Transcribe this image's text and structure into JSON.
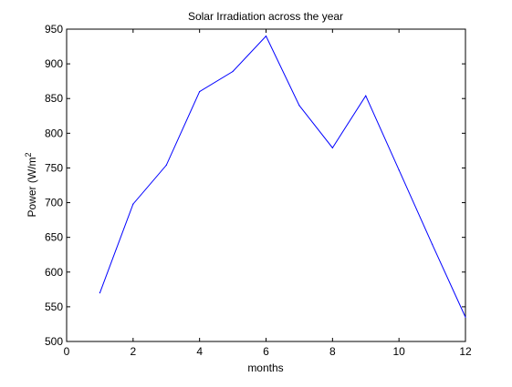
{
  "chart_data": {
    "type": "line",
    "title": "Solar Irradiation across the year",
    "xlabel": "months",
    "ylabel": "Power (W/m",
    "ylabel_superscript": "2",
    "xlim": [
      0,
      12
    ],
    "ylim": [
      500,
      950
    ],
    "xticks": [
      0,
      2,
      4,
      6,
      8,
      10,
      12
    ],
    "yticks": [
      500,
      550,
      600,
      650,
      700,
      750,
      800,
      850,
      900,
      950
    ],
    "grid": false,
    "series": [
      {
        "color": "#0000ff",
        "x": [
          1,
          2,
          3,
          4,
          5,
          6,
          7,
          8,
          9,
          10,
          11,
          12
        ],
        "y": [
          570,
          698,
          754,
          860,
          889,
          940,
          840,
          779,
          854,
          747,
          640,
          535
        ]
      }
    ]
  }
}
